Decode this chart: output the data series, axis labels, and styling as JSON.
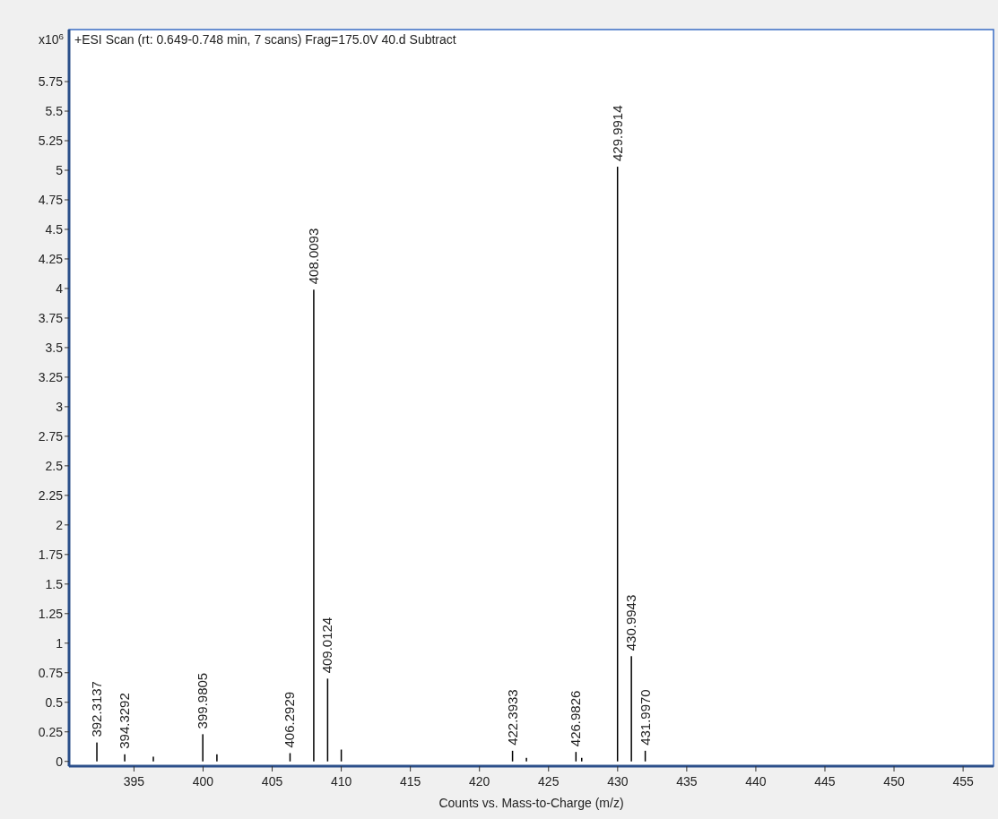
{
  "chart_data": {
    "type": "bar",
    "title": "+ESI Scan (rt: 0.649-0.748 min, 7 scans) Frag=175.0V 40.d  Subtract",
    "xlabel": "Counts vs. Mass-to-Charge (m/z)",
    "ylabel": "x10$^{6}$",
    "x": [
      392.3137,
      394.3292,
      396.4,
      399.9805,
      401.0,
      406.2929,
      408.0093,
      409.0124,
      410.0,
      422.3933,
      423.4,
      426.9826,
      427.4,
      429.9914,
      430.9943,
      431.997
    ],
    "values": [
      0.16,
      0.06,
      0.04,
      0.23,
      0.06,
      0.07,
      3.99,
      0.7,
      0.1,
      0.09,
      0.03,
      0.08,
      0.03,
      5.03,
      0.89,
      0.09
    ],
    "color": "#000000",
    "xlim": [
      390.3,
      457.2
    ],
    "ylim": [
      -0.04,
      6.19
    ],
    "xticks": [
      395,
      400,
      405,
      410,
      415,
      420,
      425,
      430,
      435,
      440,
      445,
      450,
      455
    ],
    "yticks": [
      0,
      0.25,
      0.5,
      0.75,
      1,
      1.25,
      1.5,
      1.75,
      2,
      2.25,
      2.5,
      2.75,
      3,
      3.25,
      3.5,
      3.75,
      4,
      4.25,
      4.5,
      4.75,
      5,
      5.25,
      5.5,
      5.75
    ],
    "annotations": [
      {
        "text": "392.3137",
        "x": 392.3137,
        "y": 0.16
      },
      {
        "text": "394.3292",
        "x": 394.3292,
        "y": 0.06
      },
      {
        "text": "399.9805",
        "x": 399.9805,
        "y": 0.23
      },
      {
        "text": "406.2929",
        "x": 406.2929,
        "y": 0.07
      },
      {
        "text": "408.0093",
        "x": 408.0093,
        "y": 3.99
      },
      {
        "text": "409.0124",
        "x": 409.0124,
        "y": 0.7
      },
      {
        "text": "422.3933",
        "x": 422.3933,
        "y": 0.09
      },
      {
        "text": "426.9826",
        "x": 426.9826,
        "y": 0.08
      },
      {
        "text": "429.9914",
        "x": 429.9914,
        "y": 5.03
      },
      {
        "text": "430.9943",
        "x": 430.9943,
        "y": 0.89
      },
      {
        "text": "431.9970",
        "x": 431.997,
        "y": 0.09
      }
    ]
  }
}
